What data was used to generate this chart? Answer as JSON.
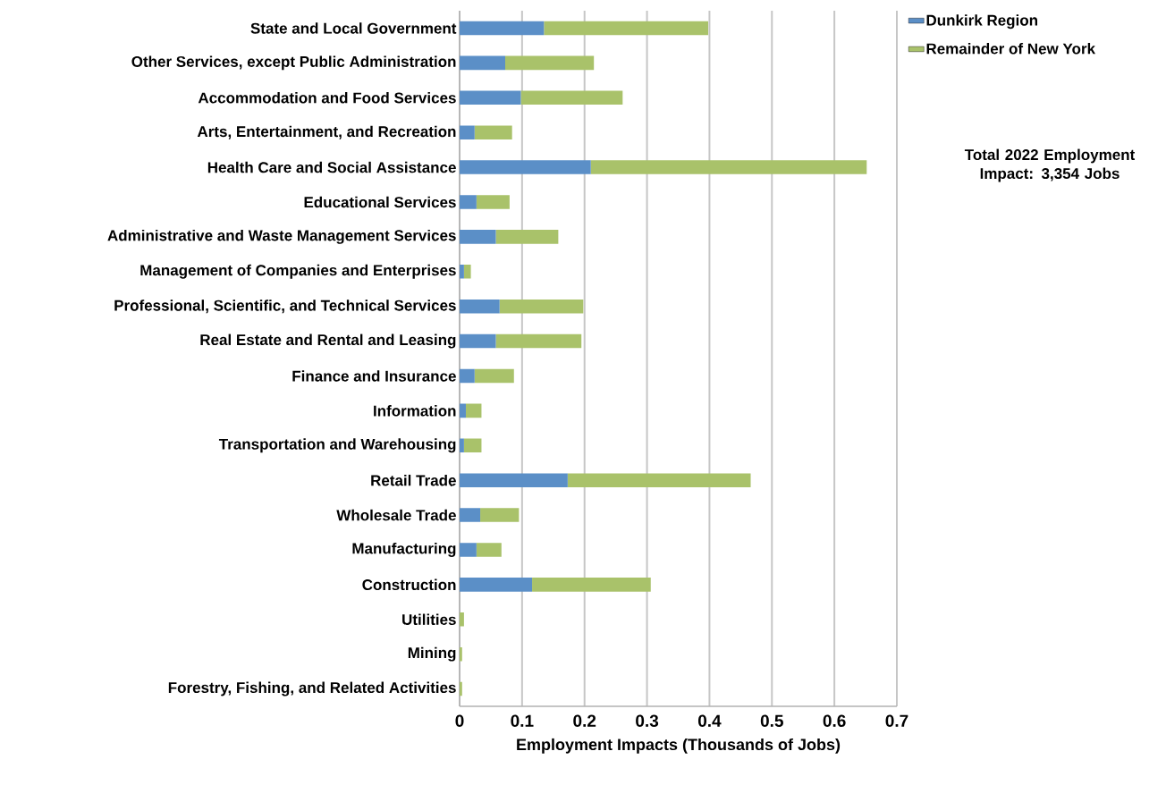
{
  "chart_data": {
    "type": "bar",
    "orientation": "horizontal",
    "stacked": true,
    "categories": [
      "State and Local Government",
      "Other Services, except Public Administration",
      "Accommodation and Food Services",
      "Arts, Entertainment, and Recreation",
      "Health Care and Social Assistance",
      "Educational Services",
      "Administrative and Waste Management Services",
      "Management of Companies and Enterprises",
      "Professional, Scientific, and Technical Services",
      "Real Estate and Rental and Leasing",
      "Finance and Insurance",
      "Information",
      "Transportation and Warehousing",
      "Retail Trade",
      "Wholesale Trade",
      "Manufacturing",
      "Construction",
      "Utilities",
      "Mining",
      "Forestry, Fishing, and Related Activities"
    ],
    "series": [
      {
        "name": "Dunkirk Region",
        "color": "#5b8fc7",
        "values": [
          0.135,
          0.073,
          0.098,
          0.024,
          0.21,
          0.027,
          0.058,
          0.007,
          0.064,
          0.058,
          0.024,
          0.01,
          0.007,
          0.173,
          0.033,
          0.027,
          0.116,
          0,
          0,
          0
        ]
      },
      {
        "name": "Remainder of New York",
        "color": "#a9c26a",
        "values": [
          0.263,
          0.142,
          0.163,
          0.06,
          0.442,
          0.053,
          0.1,
          0.011,
          0.134,
          0.137,
          0.063,
          0.025,
          0.028,
          0.293,
          0.062,
          0.04,
          0.19,
          0.007,
          0.004,
          0.004
        ]
      }
    ],
    "xlabel": "Employment Impacts (Thousands of Jobs)",
    "xlim": [
      0,
      0.7
    ],
    "xticks": [
      0,
      0.1,
      0.2,
      0.3,
      0.4,
      0.5,
      0.6,
      0.7
    ],
    "grid": "x",
    "legend": "top right",
    "annotations": [
      "Total 2022 Employment Impact: 3,354 Jobs"
    ]
  }
}
